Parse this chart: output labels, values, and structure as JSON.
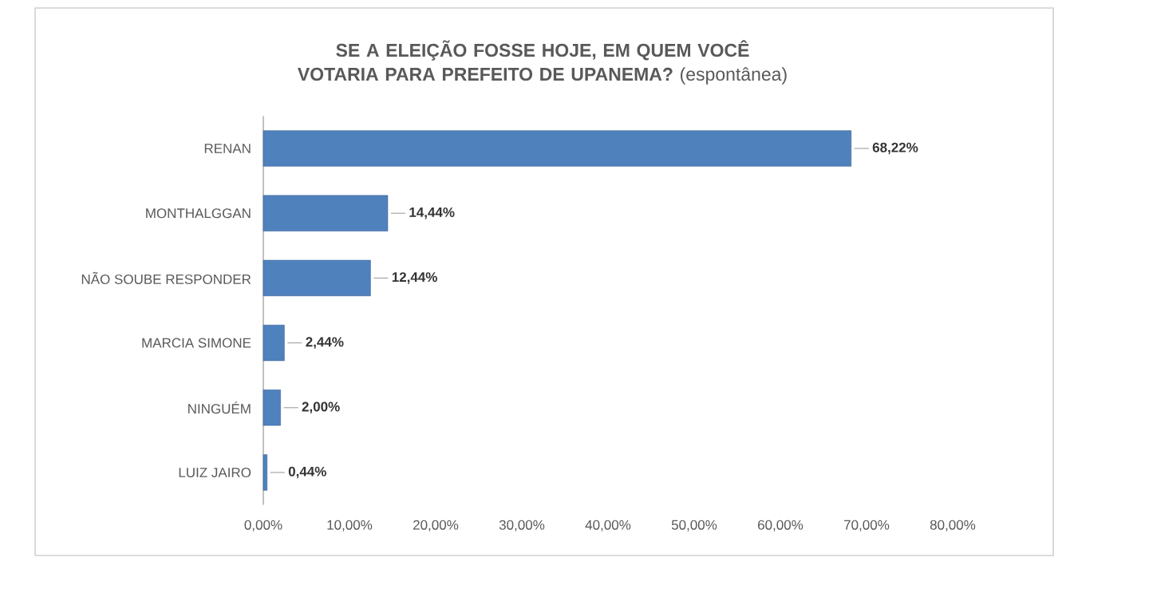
{
  "chart_data": {
    "type": "bar",
    "orientation": "horizontal",
    "title": "**SE A ELEIÇÃO FOSSE HOJE, EM QUEM VOCÊ VOTARIA PARA PREFEITO DE UPANEMA?** (espontânea)",
    "categories": [
      "RENAN",
      "MONTHALGGAN",
      "NÃO SOUBE RESPONDER",
      "MARCIA SIMONE",
      "NINGUÉM",
      "LUIZ JAIRO"
    ],
    "values": [
      68.22,
      14.44,
      12.44,
      2.44,
      2.0,
      0.44
    ],
    "value_labels": [
      "68,22%",
      "14,44%",
      "12,44%",
      "2,44%",
      "2,00%",
      "0,44%"
    ],
    "color": "#4f81bd",
    "xlim": [
      0,
      80
    ],
    "xticks": [
      {
        "value": 0,
        "label": "0,00%"
      },
      {
        "value": 10,
        "label": "10,00%"
      },
      {
        "value": 20,
        "label": "20,00%"
      },
      {
        "value": 30,
        "label": "30,00%"
      },
      {
        "value": 40,
        "label": "40,00%"
      },
      {
        "value": 50,
        "label": "50,00%"
      },
      {
        "value": 60,
        "label": "60,00%"
      },
      {
        "value": 70,
        "label": "70,00%"
      },
      {
        "value": 80,
        "label": "80,00%"
      }
    ]
  }
}
